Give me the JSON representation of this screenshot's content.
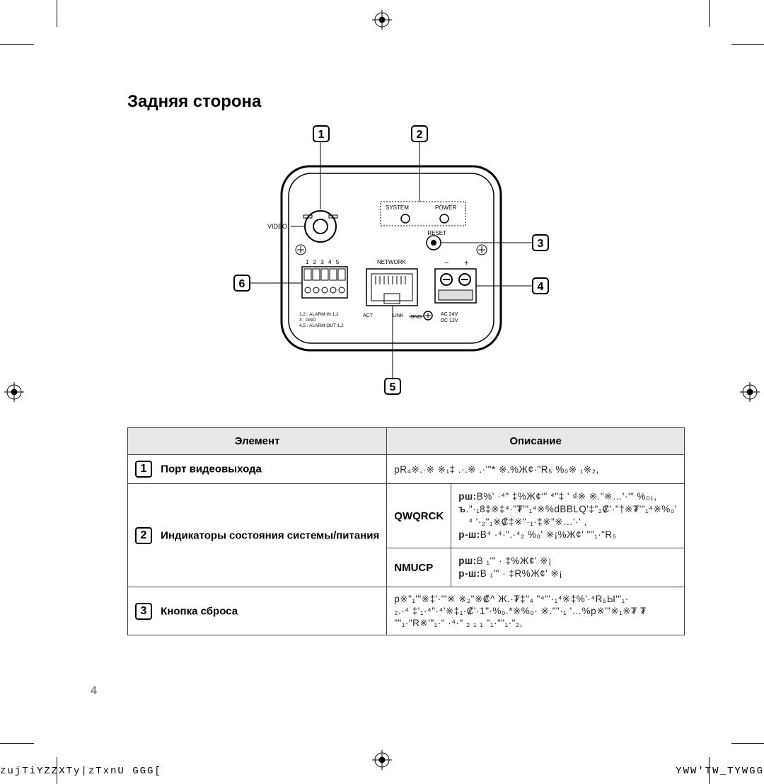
{
  "title": "Задняя сторона",
  "page_number": "4",
  "footer_left": "zujTiYZZXTy|zTxnU   GGG[",
  "footer_right": "YWW'TW_TYWGG",
  "diagram": {
    "callouts": [
      "1",
      "2",
      "3",
      "4",
      "5",
      "6"
    ],
    "labels": {
      "system": "SYSTEM",
      "power": "POWER",
      "reset": "RESET",
      "video": "VIDEO",
      "network": "NETWORK",
      "terminals_top": "1 2 3 4 5",
      "act": "ACT",
      "link": "LINK",
      "gnd": "GND",
      "ac": "AC 24V",
      "dc": "DC 12V",
      "legend1": "1,2 : ALARM IN 1,2",
      "legend2": "3    : GND",
      "legend3": "4,5 : ALARM OUT 1,2",
      "minus": "−",
      "plus": "+"
    }
  },
  "table": {
    "head_item": "Элемент",
    "head_desc": "Описание",
    "rows": [
      {
        "num": "1",
        "name": "Порт видеовыхода",
        "desc_garble": "рR₄※.·※  ※₁‡ .·.※ .·'\"* ※.%Ж¢·\"R₅ %₀※ ₁※₂,"
      },
      {
        "num": "2",
        "name": "Индикаторы состояния системы/питания",
        "sub": [
          {
            "label": "QWQRCK",
            "lines": [
              {
                "b": "рш:",
                "t": "В%' ·⁴\" ‡%Ж¢'\"   ⁴\"‡ ' ₫※ ※.\"※…'·'\" %₀₁,"
              },
              {
                "b": "ъ",
                "t": ".\"·₁8‡※‡⁴·\"₮'\"₁⁴※%dВBLQ'‡\"₂₡'·\"†※₮'\"₁⁴※%₀'"
              },
              {
                "b": "",
                "t": "⁴ '·₂\"₁※₡‡※\"·₁·‡※\"※…'·'  ,",
                "indent": true
              },
              {
                "b": "р-ш:",
                "t": "В⁴  ·⁴·\".·⁴₂ %₀' ※¡%Ж¢' \"\"₁·\"R₅"
              }
            ]
          },
          {
            "label": "NMUCP",
            "lines": [
              {
                "b": "рш:",
                "t": "В ₁'\" · ‡%Ж¢' ※¡"
              },
              {
                "b": "р-ш:",
                "t": "В ₁'\" · ‡R%Ж¢' ※¡"
              }
            ]
          }
        ]
      },
      {
        "num": "3",
        "name": "Кнопка сброса",
        "desc_garble": "р※\"₁'\"※‡'·'\"※   ※₂\"※₡^ Ж.·₮‡\"₄  \"⁴'\"·₁⁴※‡%'·⁴R₅Ы'\"₁·\n₂.·⁴  ‡'₁·⁴\"·⁴'※‡₁·₡'·1\"·%₀.*※%₀·  ※.\"\"·₁ '…%p※'\"※₁※₮ ₮\n\"\"₁·\"R※'\"₁·\" ·⁴·\" ₂ ₁ ₁ \"₁·\"\"₁·\"₂,"
      }
    ]
  }
}
